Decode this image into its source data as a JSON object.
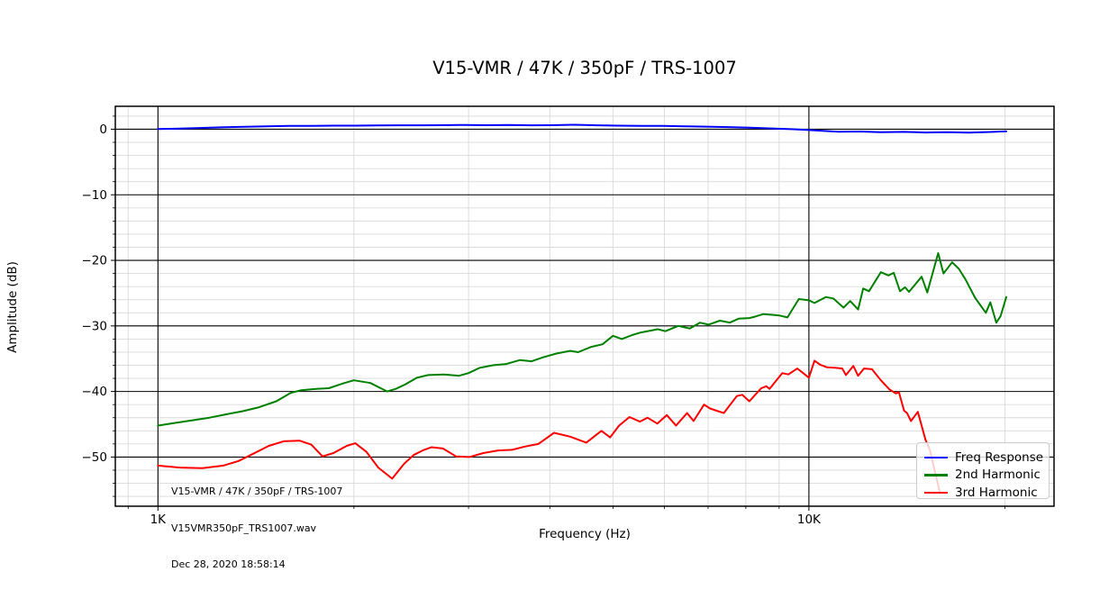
{
  "title": "V15-VMR / 47K / 350pF / TRS-1007",
  "axes": {
    "x": {
      "label": "Frequency (Hz)",
      "scale": "log",
      "min": 860,
      "max": 23800,
      "major_ticks": [
        {
          "value": 1000,
          "label": "1K"
        },
        {
          "value": 10000,
          "label": "10K"
        }
      ],
      "minor_ticks": [
        900,
        2000,
        3000,
        4000,
        5000,
        6000,
        7000,
        8000,
        9000,
        20000
      ]
    },
    "y": {
      "label": "Amplitude (dB)",
      "scale": "linear",
      "min": -57.5,
      "max": 3.5,
      "major_ticks": [
        {
          "value": 0,
          "label": "0"
        },
        {
          "value": -10,
          "label": "−10"
        },
        {
          "value": -20,
          "label": "−20"
        },
        {
          "value": -30,
          "label": "−30"
        },
        {
          "value": -40,
          "label": "−40"
        },
        {
          "value": -50,
          "label": "−50"
        }
      ],
      "minor_step": 2
    }
  },
  "grid": {
    "major_color": "#000000",
    "minor_color": "#d9d9d9"
  },
  "annotation": {
    "lines": [
      "V15-VMR / 47K / 350pF / TRS-1007",
      "V15VMR350pF_TRS1007.wav",
      "Dec 28, 2020 18:58:14"
    ]
  },
  "legend": {
    "position": "lower right",
    "items": [
      {
        "label": "Freq Response",
        "color": "#0000ff"
      },
      {
        "label": "2nd Harmonic",
        "color": "#008000"
      },
      {
        "label": "3rd Harmonic",
        "color": "#ff0000"
      }
    ]
  },
  "chart_data": {
    "type": "line",
    "title": "V15-VMR / 47K / 350pF / TRS-1007",
    "xlabel": "Frequency (Hz)",
    "ylabel": "Amplitude (dB)",
    "xscale": "log",
    "xlim": [
      860,
      23800
    ],
    "ylim": [
      -57.5,
      3.5
    ],
    "grid": "both",
    "legend_position": "lower right",
    "series": [
      {
        "name": "Freq Response",
        "color": "#0000ff",
        "points": [
          [
            1000,
            0.02
          ],
          [
            1080,
            0.1
          ],
          [
            1170,
            0.2
          ],
          [
            1260,
            0.3
          ],
          [
            1360,
            0.38
          ],
          [
            1470,
            0.45
          ],
          [
            1590,
            0.5
          ],
          [
            1720,
            0.52
          ],
          [
            1860,
            0.55
          ],
          [
            2010,
            0.55
          ],
          [
            2170,
            0.58
          ],
          [
            2350,
            0.6
          ],
          [
            2540,
            0.6
          ],
          [
            2740,
            0.62
          ],
          [
            2960,
            0.65
          ],
          [
            3200,
            0.62
          ],
          [
            3460,
            0.65
          ],
          [
            3740,
            0.6
          ],
          [
            4040,
            0.62
          ],
          [
            4370,
            0.68
          ],
          [
            4720,
            0.6
          ],
          [
            5100,
            0.55
          ],
          [
            5510,
            0.52
          ],
          [
            5960,
            0.5
          ],
          [
            6440,
            0.45
          ],
          [
            6960,
            0.4
          ],
          [
            7520,
            0.32
          ],
          [
            8130,
            0.25
          ],
          [
            8780,
            0.12
          ],
          [
            9490,
            0.0
          ],
          [
            10300,
            -0.2
          ],
          [
            11100,
            -0.38
          ],
          [
            12000,
            -0.35
          ],
          [
            12900,
            -0.45
          ],
          [
            14000,
            -0.4
          ],
          [
            15100,
            -0.5
          ],
          [
            16300,
            -0.45
          ],
          [
            17600,
            -0.52
          ],
          [
            19000,
            -0.42
          ],
          [
            20100,
            -0.3
          ]
        ]
      },
      {
        "name": "2nd Harmonic",
        "color": "#008000",
        "points": [
          [
            1000,
            -45.2
          ],
          [
            1060,
            -44.8
          ],
          [
            1130,
            -44.4
          ],
          [
            1200,
            -44.0
          ],
          [
            1270,
            -43.5
          ],
          [
            1350,
            -43.0
          ],
          [
            1430,
            -42.4
          ],
          [
            1520,
            -41.5
          ],
          [
            1600,
            -40.2
          ],
          [
            1660,
            -39.8
          ],
          [
            1750,
            -39.6
          ],
          [
            1830,
            -39.5
          ],
          [
            1920,
            -38.8
          ],
          [
            2000,
            -38.3
          ],
          [
            2120,
            -38.7
          ],
          [
            2250,
            -40.0
          ],
          [
            2320,
            -39.6
          ],
          [
            2400,
            -38.9
          ],
          [
            2500,
            -37.9
          ],
          [
            2600,
            -37.5
          ],
          [
            2750,
            -37.4
          ],
          [
            2900,
            -37.6
          ],
          [
            3000,
            -37.2
          ],
          [
            3120,
            -36.4
          ],
          [
            3270,
            -36.0
          ],
          [
            3430,
            -35.8
          ],
          [
            3600,
            -35.2
          ],
          [
            3750,
            -35.4
          ],
          [
            3900,
            -34.8
          ],
          [
            4100,
            -34.2
          ],
          [
            4300,
            -33.8
          ],
          [
            4420,
            -34.0
          ],
          [
            4630,
            -33.2
          ],
          [
            4820,
            -32.8
          ],
          [
            5000,
            -31.5
          ],
          [
            5160,
            -32.0
          ],
          [
            5350,
            -31.4
          ],
          [
            5520,
            -31.0
          ],
          [
            5860,
            -30.5
          ],
          [
            6020,
            -30.8
          ],
          [
            6300,
            -30.0
          ],
          [
            6560,
            -30.4
          ],
          [
            6800,
            -29.5
          ],
          [
            7010,
            -29.8
          ],
          [
            7300,
            -29.2
          ],
          [
            7560,
            -29.5
          ],
          [
            7800,
            -28.9
          ],
          [
            8100,
            -28.8
          ],
          [
            8260,
            -28.6
          ],
          [
            8510,
            -28.2
          ],
          [
            8780,
            -28.3
          ],
          [
            9000,
            -28.4
          ],
          [
            9270,
            -28.7
          ],
          [
            9650,
            -25.9
          ],
          [
            10000,
            -26.1
          ],
          [
            10200,
            -26.5
          ],
          [
            10620,
            -25.6
          ],
          [
            10900,
            -25.8
          ],
          [
            11300,
            -27.2
          ],
          [
            11570,
            -26.2
          ],
          [
            11900,
            -27.5
          ],
          [
            12120,
            -24.3
          ],
          [
            12370,
            -24.7
          ],
          [
            12900,
            -21.8
          ],
          [
            13250,
            -22.3
          ],
          [
            13500,
            -21.9
          ],
          [
            13800,
            -24.7
          ],
          [
            14050,
            -24.1
          ],
          [
            14250,
            -24.8
          ],
          [
            14900,
            -22.5
          ],
          [
            15200,
            -24.9
          ],
          [
            15800,
            -18.9
          ],
          [
            16100,
            -22.0
          ],
          [
            16600,
            -20.3
          ],
          [
            17000,
            -21.3
          ],
          [
            17400,
            -22.9
          ],
          [
            18000,
            -25.7
          ],
          [
            18700,
            -28.0
          ],
          [
            19000,
            -26.4
          ],
          [
            19400,
            -29.5
          ],
          [
            19700,
            -28.5
          ],
          [
            20100,
            -25.6
          ]
        ]
      },
      {
        "name": "3rd Harmonic",
        "color": "#ff0000",
        "points": [
          [
            1000,
            -51.3
          ],
          [
            1080,
            -51.6
          ],
          [
            1170,
            -51.7
          ],
          [
            1260,
            -51.3
          ],
          [
            1330,
            -50.6
          ],
          [
            1400,
            -49.5
          ],
          [
            1480,
            -48.3
          ],
          [
            1560,
            -47.6
          ],
          [
            1650,
            -47.5
          ],
          [
            1720,
            -48.1
          ],
          [
            1790,
            -49.9
          ],
          [
            1860,
            -49.4
          ],
          [
            1950,
            -48.3
          ],
          [
            2010,
            -47.9
          ],
          [
            2090,
            -49.2
          ],
          [
            2180,
            -51.6
          ],
          [
            2290,
            -53.3
          ],
          [
            2390,
            -51.0
          ],
          [
            2470,
            -49.7
          ],
          [
            2550,
            -49.0
          ],
          [
            2630,
            -48.5
          ],
          [
            2740,
            -48.7
          ],
          [
            2870,
            -49.9
          ],
          [
            3010,
            -50.0
          ],
          [
            3160,
            -49.4
          ],
          [
            3330,
            -49.0
          ],
          [
            3500,
            -48.9
          ],
          [
            3660,
            -48.4
          ],
          [
            3840,
            -48.0
          ],
          [
            4060,
            -46.3
          ],
          [
            4300,
            -46.9
          ],
          [
            4550,
            -47.8
          ],
          [
            4800,
            -46.0
          ],
          [
            4950,
            -47.0
          ],
          [
            5110,
            -45.2
          ],
          [
            5300,
            -43.9
          ],
          [
            5500,
            -44.6
          ],
          [
            5650,
            -44.0
          ],
          [
            5850,
            -44.9
          ],
          [
            6050,
            -43.6
          ],
          [
            6250,
            -45.2
          ],
          [
            6500,
            -43.3
          ],
          [
            6650,
            -44.5
          ],
          [
            6900,
            -42.0
          ],
          [
            7050,
            -42.6
          ],
          [
            7250,
            -43.0
          ],
          [
            7400,
            -43.3
          ],
          [
            7750,
            -40.7
          ],
          [
            7900,
            -40.5
          ],
          [
            8100,
            -41.5
          ],
          [
            8450,
            -39.5
          ],
          [
            8600,
            -39.2
          ],
          [
            8700,
            -39.6
          ],
          [
            9100,
            -37.2
          ],
          [
            9300,
            -37.4
          ],
          [
            9600,
            -36.5
          ],
          [
            10000,
            -37.9
          ],
          [
            10200,
            -35.3
          ],
          [
            10400,
            -35.9
          ],
          [
            10650,
            -36.3
          ],
          [
            11000,
            -36.4
          ],
          [
            11250,
            -36.5
          ],
          [
            11400,
            -37.5
          ],
          [
            11700,
            -36.1
          ],
          [
            11900,
            -37.6
          ],
          [
            12150,
            -36.5
          ],
          [
            12500,
            -36.6
          ],
          [
            12900,
            -38.3
          ],
          [
            13300,
            -39.7
          ],
          [
            13600,
            -40.3
          ],
          [
            13750,
            -40.1
          ],
          [
            14000,
            -42.9
          ],
          [
            14150,
            -43.3
          ],
          [
            14350,
            -44.5
          ],
          [
            14700,
            -43.1
          ],
          [
            15100,
            -47.3
          ],
          [
            15350,
            -49.0
          ],
          [
            15600,
            -52.0
          ],
          [
            15800,
            -54.3
          ],
          [
            15900,
            -55.5
          ]
        ]
      }
    ]
  }
}
